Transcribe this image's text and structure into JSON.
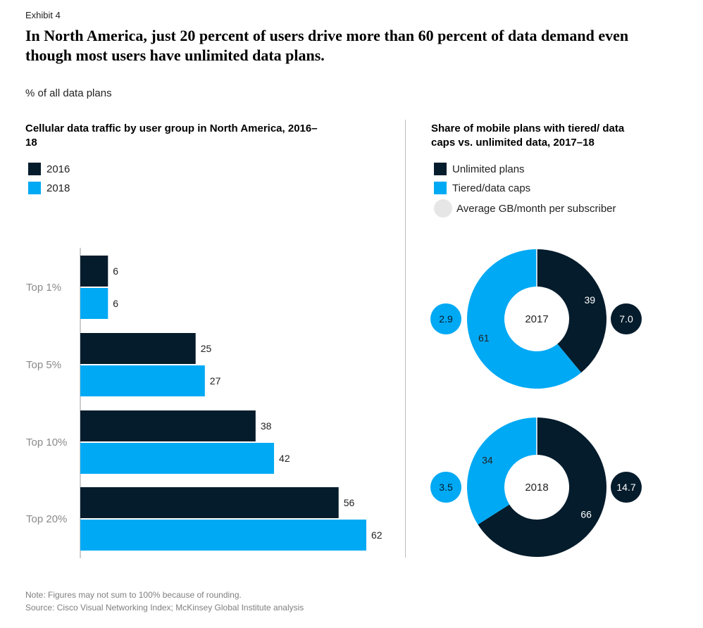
{
  "exhibit_label": "Exhibit 4",
  "headline": "In North America, just 20 percent of users drive more than 60 percent of data demand even though most users have unlimited data plans.",
  "unit_note": "% of all data plans",
  "colors": {
    "dark": "#051c2c",
    "blue": "#00a9f4",
    "avg_circle": "#e6e6e6"
  },
  "chart_data": [
    {
      "type": "bar",
      "orientation": "horizontal",
      "title": "Cellular data traffic by user group in North America, 2016–18",
      "categories": [
        "Top 1%",
        "Top 5%",
        "Top 10%",
        "Top 20%"
      ],
      "series": [
        {
          "name": "2016",
          "color": "#051c2c",
          "values": [
            6,
            25,
            38,
            56
          ]
        },
        {
          "name": "2018",
          "color": "#00a9f4",
          "values": [
            6,
            27,
            42,
            62
          ]
        }
      ],
      "xlim": [
        0,
        62
      ],
      "legend_position": "top-left",
      "data_labels": true
    },
    {
      "type": "pie",
      "style": "donut",
      "title": "Share of mobile plans with tiered/ data caps vs. unlimited data, 2017–18",
      "legend": [
        {
          "label": "Unlimited plans",
          "color": "#051c2c"
        },
        {
          "label": "Tiered/data caps",
          "color": "#00a9f4"
        },
        {
          "label": "Average GB/month per subscriber",
          "color": "#e6e6e6"
        }
      ],
      "donuts": [
        {
          "year": "2017",
          "unlimited": 39,
          "tiered": 61,
          "avg_gb_tiered": "2.9",
          "avg_gb_unlimited": "7.0"
        },
        {
          "year": "2018",
          "unlimited": 66,
          "tiered": 34,
          "avg_gb_tiered": "3.5",
          "avg_gb_unlimited": "14.7"
        }
      ]
    }
  ],
  "footer": {
    "note": "Note: Figures may not sum to 100% because of rounding.",
    "source": "Source: Cisco Visual Networking Index; McKinsey Global Institute analysis"
  }
}
